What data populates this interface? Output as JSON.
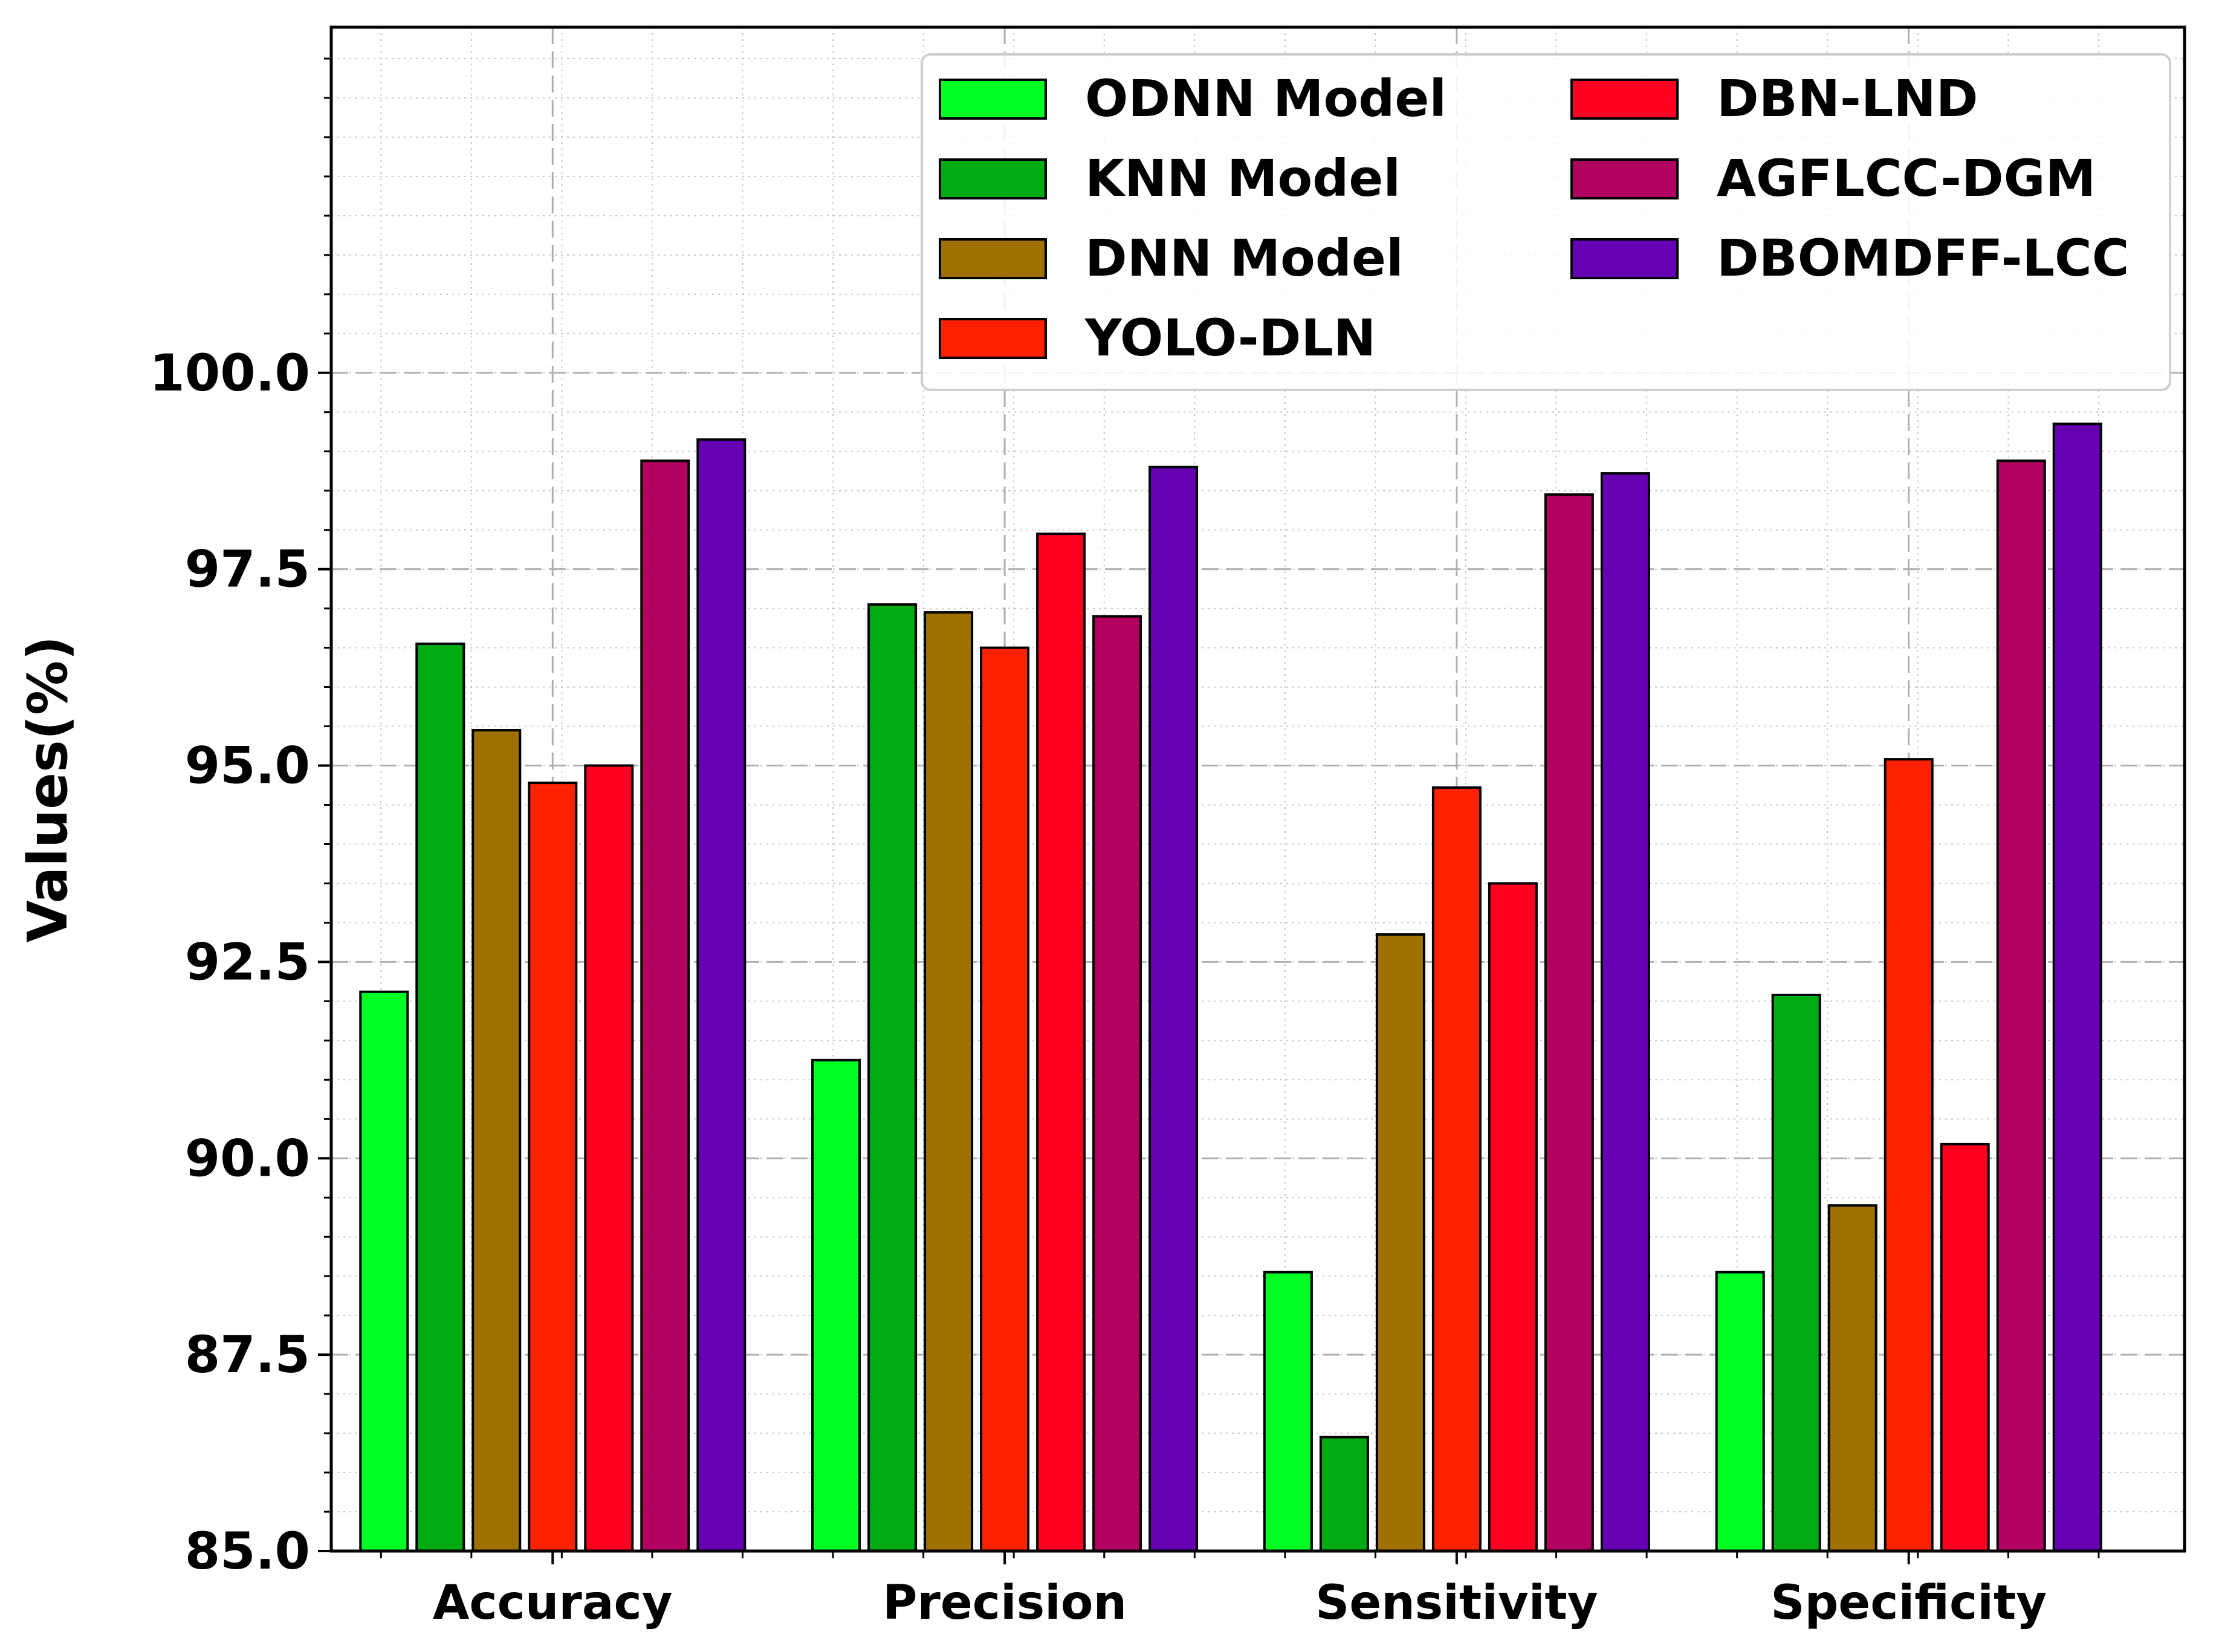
{
  "chart_data": {
    "type": "bar",
    "title": "",
    "xlabel": "",
    "ylabel": "Values(%)",
    "ylim": [
      85.0,
      104.4
    ],
    "yticks": [
      "85.0",
      "87.5",
      "90.0",
      "92.5",
      "95.0",
      "97.5",
      "100.0"
    ],
    "ytick_values": [
      85.0,
      87.5,
      90.0,
      92.5,
      95.0,
      97.5,
      100.0
    ],
    "categories": [
      "Accuracy",
      "Precision",
      "Sensitivity",
      "Specificity"
    ],
    "grid": true,
    "legend_position": "top-right",
    "legend_columns": 2,
    "series": [
      {
        "name": "ODNN Model",
        "color": "#00ff22",
        "values": [
          92.12,
          91.25,
          88.55,
          88.55
        ]
      },
      {
        "name": "KNN Model",
        "color": "#00aa11",
        "values": [
          96.55,
          97.05,
          86.45,
          92.08
        ]
      },
      {
        "name": "DNN Model",
        "color": "#9e7000",
        "values": [
          95.45,
          96.95,
          92.85,
          89.4
        ]
      },
      {
        "name": "YOLO-DLN",
        "color": "#ff2200",
        "values": [
          94.78,
          96.5,
          94.72,
          95.08
        ]
      },
      {
        "name": "DBN-LND",
        "color": "#ff0022",
        "values": [
          95.0,
          97.95,
          93.5,
          90.18
        ]
      },
      {
        "name": "AGFLCC-DGM",
        "color": "#b00060",
        "values": [
          98.88,
          96.9,
          98.45,
          98.88
        ]
      },
      {
        "name": "DBOMDFF-LCC",
        "color": "#6600b3",
        "values": [
          99.15,
          98.8,
          98.72,
          99.35
        ]
      }
    ]
  }
}
